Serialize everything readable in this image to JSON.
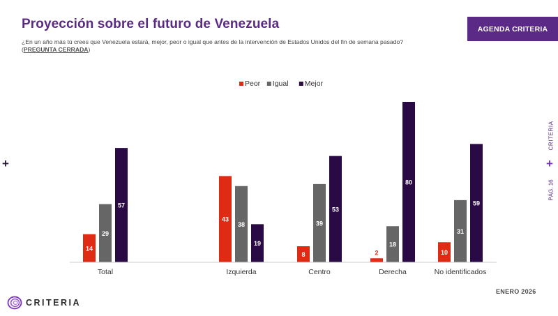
{
  "header": {
    "title": "Proyección sobre el futuro de Venezuela",
    "question": "¿En un año más tú crees que Venezuela estará, mejor, peor o igual que antes de la intervención de Estados Unidos del fin de semana pasado?",
    "question_tag": "PREGUNTA CERRADA",
    "agenda_label": "AGENDA CRITERIA"
  },
  "side": {
    "brand": "CRITERIA",
    "page": "PÁG. 16",
    "plus": "+"
  },
  "footer": {
    "date": "ENERO 2026",
    "logo_text": "CRITERIA",
    "logo_icon": "criteria-swirl-icon"
  },
  "colors": {
    "peor": "#e02b14",
    "igual": "#666666",
    "mejor": "#2a0a45",
    "accent": "#5b2a86"
  },
  "chart_data": {
    "type": "bar",
    "title": "",
    "xlabel": "",
    "ylabel": "",
    "ylim": [
      0,
      80
    ],
    "grid": false,
    "legend_position": "top-center",
    "categories": [
      "Total",
      "Izquierda",
      "Centro",
      "Derecha",
      "No identificados"
    ],
    "series": [
      {
        "name": "Peor",
        "color": "#e02b14",
        "values": [
          14,
          43,
          8,
          2,
          10
        ]
      },
      {
        "name": "Igual",
        "color": "#666666",
        "values": [
          29,
          38,
          39,
          18,
          31
        ]
      },
      {
        "name": "Mejor",
        "color": "#2a0a45",
        "values": [
          57,
          19,
          53,
          80,
          59
        ]
      }
    ]
  }
}
